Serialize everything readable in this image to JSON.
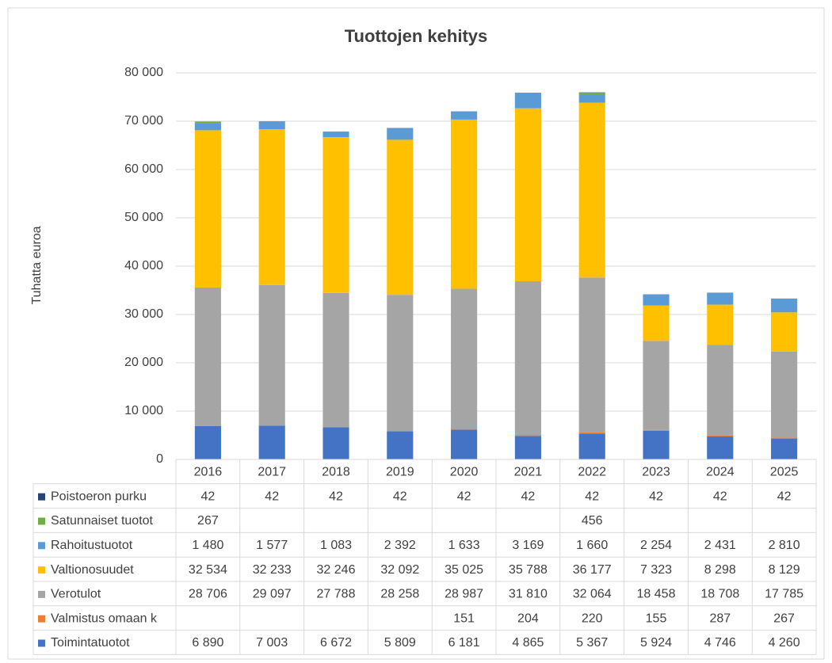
{
  "chart_data": {
    "type": "bar",
    "stacked": true,
    "title": "Tuottojen kehitys",
    "y_label": "Tuhatta euroa",
    "categories": [
      "2016",
      "2017",
      "2018",
      "2019",
      "2020",
      "2021",
      "2022",
      "2023",
      "2024",
      "2025"
    ],
    "ylim": [
      0,
      80000
    ],
    "yticks": [
      0,
      {
        "value": 10000,
        "label": "10 000"
      },
      {
        "value": 20000,
        "label": "20 000"
      },
      {
        "value": 30000,
        "label": "30 000"
      },
      {
        "value": 40000,
        "label": "40 000"
      },
      {
        "value": 50000,
        "label": "50 000"
      },
      {
        "value": 60000,
        "label": "60 000"
      },
      {
        "value": 70000,
        "label": "70 000"
      },
      {
        "value": 80000,
        "label": "80 000"
      }
    ],
    "grid": true,
    "series": [
      {
        "name": "Toimintatuotot",
        "color": "#4472c4",
        "values": [
          6890,
          7003,
          6672,
          5809,
          6181,
          4865,
          5367,
          5924,
          4746,
          4260
        ],
        "value_labels": [
          "6 890",
          "7 003",
          "6 672",
          "5 809",
          "6 181",
          "4 865",
          "5 367",
          "5 924",
          "4 746",
          "4 260"
        ]
      },
      {
        "name": "Valmistus omaan k",
        "color": "#ed7d31",
        "values": [
          null,
          null,
          null,
          null,
          151,
          204,
          220,
          155,
          287,
          267
        ]
      },
      {
        "name": "Verotulot",
        "color": "#a5a5a5",
        "values": [
          28706,
          29097,
          27788,
          28258,
          28987,
          31810,
          32064,
          18458,
          18708,
          17785
        ],
        "value_labels": [
          "28 706",
          "29 097",
          "27 788",
          "28 258",
          "28 987",
          "31 810",
          "32 064",
          "18 458",
          "18 708",
          "17 785"
        ]
      },
      {
        "name": "Valtionosuudet",
        "color": "#ffc000",
        "values": [
          32534,
          32233,
          32246,
          32092,
          35025,
          35788,
          36177,
          7323,
          8298,
          8129
        ],
        "value_labels": [
          "32 534",
          "32 233",
          "32 246",
          "32 092",
          "35 025",
          "35 788",
          "36 177",
          "7 323",
          "8 298",
          "8 129"
        ]
      },
      {
        "name": "Rahoitustuotot",
        "color": "#5b9bd5",
        "values": [
          1480,
          1577,
          1083,
          2392,
          1633,
          3169,
          1660,
          2254,
          2431,
          2810
        ],
        "value_labels": [
          "1 480",
          "1 577",
          "1 083",
          "2 392",
          "1 633",
          "3 169",
          "1 660",
          "2 254",
          "2 431",
          "2 810"
        ]
      },
      {
        "name": "Satunnaiset tuotot",
        "color": "#70ad47",
        "values": [
          267,
          null,
          null,
          null,
          null,
          null,
          456,
          null,
          null,
          null
        ]
      },
      {
        "name": "Poistoeron purku",
        "color": "#264478",
        "values": [
          42,
          42,
          42,
          42,
          42,
          42,
          42,
          42,
          42,
          42
        ]
      }
    ]
  }
}
